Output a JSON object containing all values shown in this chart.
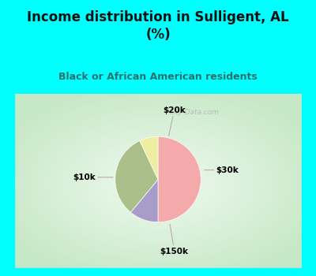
{
  "title": "Income distribution in Sulligent, AL\n(%)",
  "subtitle": "Black or African American residents",
  "labels": [
    "$10k",
    "$20k",
    "$30k",
    "$150k"
  ],
  "sizes": [
    50,
    11,
    32,
    7
  ],
  "colors": [
    "#F4AAAA",
    "#A89DC8",
    "#AABF8A",
    "#EEEEA0"
  ],
  "background_top": "#00FFFF",
  "title_color": "#111111",
  "subtitle_color": "#2a7070",
  "startangle": 90,
  "chart_bg_left": "#C8E8C8",
  "chart_bg_right": "#F0F8F0",
  "watermark": "City-Data.com"
}
